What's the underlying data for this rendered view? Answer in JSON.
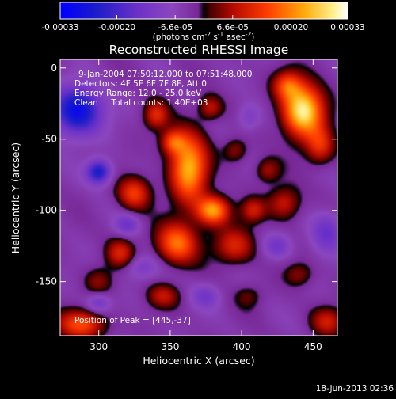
{
  "chart_data": {
    "type": "heatmap",
    "title": "Reconstructed RHESSI Image",
    "xlabel": "Heliocentric X (arcsec)",
    "ylabel": "Heliocentric Y (arcsec)",
    "xlim": [
      273,
      467
    ],
    "ylim": [
      -188,
      6
    ],
    "xticks": [
      300,
      350,
      400,
      450
    ],
    "yticks": [
      0,
      -50,
      -100,
      -150
    ],
    "colorbar": {
      "min": -0.00033,
      "max": 0.00033,
      "ticks": [
        {
          "value": -0.00033,
          "label": "-0.00033"
        },
        {
          "value": -0.0002,
          "label": "-0.00020"
        },
        {
          "value": -6.6e-05,
          "label": "-6.6e-05"
        },
        {
          "value": 6.6e-05,
          "label": "6.6e-05"
        },
        {
          "value": 0.0002,
          "label": "0.00020"
        },
        {
          "value": 0.00033,
          "label": "0.00033"
        }
      ],
      "units_base": "(photons cm",
      "units_exp1": "-2",
      "units_mid1": " s",
      "units_exp2": "-1",
      "units_mid2": " asec",
      "units_exp3": "-2",
      "units_end": ")"
    },
    "annotations": [
      "9-Jan-2004 07:50:12.000 to 07:51:48.000",
      "Detectors: 4F 5F 6F 7F 8F, Att 0",
      "Energy Range: 12.0 - 25.0 keV",
      "Clean     Total counts: 1.40E+03"
    ],
    "peak_label": "Position of Peak = [445,-37]",
    "blobs": [
      {
        "x": 443,
        "y": -30,
        "sx": 10,
        "sy": 13,
        "v": 0.00034
      },
      {
        "x": 432,
        "y": -12,
        "sx": 7,
        "sy": 7,
        "v": 0.00016
      },
      {
        "x": 455,
        "y": -55,
        "sx": 7,
        "sy": 9,
        "v": 0.00014
      },
      {
        "x": 363,
        "y": -70,
        "sx": 9,
        "sy": 17,
        "v": 0.00028
      },
      {
        "x": 352,
        "y": -52,
        "sx": 6,
        "sy": 6,
        "v": 0.00016
      },
      {
        "x": 380,
        "y": -100,
        "sx": 8,
        "sy": 7,
        "v": 0.00026
      },
      {
        "x": 355,
        "y": -123,
        "sx": 10,
        "sy": 10,
        "v": 0.00022
      },
      {
        "x": 325,
        "y": -88,
        "sx": 8,
        "sy": 8,
        "v": 0.00017
      },
      {
        "x": 395,
        "y": -125,
        "sx": 10,
        "sy": 9,
        "v": 0.00014
      },
      {
        "x": 315,
        "y": -130,
        "sx": 7,
        "sy": 7,
        "v": 0.00013
      },
      {
        "x": 340,
        "y": -33,
        "sx": 6,
        "sy": 7,
        "v": 0.00014
      },
      {
        "x": 378,
        "y": -28,
        "sx": 6,
        "sy": 6,
        "v": 0.00012
      },
      {
        "x": 408,
        "y": -100,
        "sx": 6,
        "sy": 6,
        "v": 0.00012
      },
      {
        "x": 430,
        "y": -95,
        "sx": 8,
        "sy": 8,
        "v": 0.00013
      },
      {
        "x": 418,
        "y": -72,
        "sx": 6,
        "sy": 6,
        "v": 0.0001
      },
      {
        "x": 288,
        "y": -180,
        "sx": 12,
        "sy": 7,
        "v": 0.00018
      },
      {
        "x": 300,
        "y": -150,
        "sx": 7,
        "sy": 7,
        "v": 8e-05
      },
      {
        "x": 345,
        "y": -160,
        "sx": 8,
        "sy": 6,
        "v": 0.00011
      },
      {
        "x": 460,
        "y": -178,
        "sx": 8,
        "sy": 7,
        "v": 0.00012
      },
      {
        "x": 440,
        "y": -145,
        "sx": 7,
        "sy": 6,
        "v": 8e-05
      },
      {
        "x": 396,
        "y": -58,
        "sx": 6,
        "sy": 6,
        "v": 9e-05
      },
      {
        "x": 405,
        "y": -160,
        "sx": 7,
        "sy": 6,
        "v": 6e-05
      },
      {
        "x": 285,
        "y": -30,
        "sx": 12,
        "sy": 12,
        "v": -0.00026
      },
      {
        "x": 300,
        "y": -73,
        "sx": 6,
        "sy": 6,
        "v": -0.00022
      },
      {
        "x": 330,
        "y": -140,
        "sx": 8,
        "sy": 6,
        "v": -8e-05
      },
      {
        "x": 425,
        "y": -125,
        "sx": 7,
        "sy": 6,
        "v": -0.0001
      },
      {
        "x": 460,
        "y": -115,
        "sx": 8,
        "sy": 10,
        "v": -0.00012
      },
      {
        "x": 375,
        "y": -160,
        "sx": 7,
        "sy": 6,
        "v": -9e-05
      },
      {
        "x": 405,
        "y": -35,
        "sx": 6,
        "sy": 7,
        "v": -8e-05
      },
      {
        "x": 320,
        "y": -110,
        "sx": 6,
        "sy": 5,
        "v": -0.0001
      },
      {
        "x": 300,
        "y": -165,
        "sx": 6,
        "sy": 5,
        "v": -0.0001
      }
    ]
  },
  "footer": {
    "date": "18-Jun-2013 02:36"
  }
}
